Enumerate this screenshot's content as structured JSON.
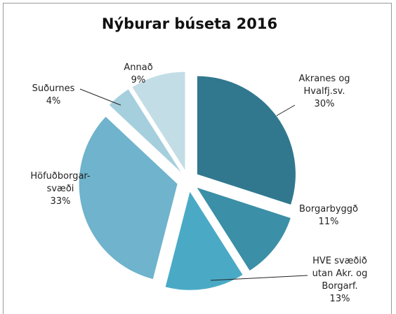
{
  "chart_data": {
    "type": "pie",
    "title": "Nýburar búseta 2016",
    "categories": [
      "Akranes og\nHvalfj.sv.",
      "Borgarbyggð",
      "HVE svæðið\nutan Akr. og\nBorgarf.",
      "Höfuðborgar-\nsvæði",
      "Suðurnes",
      "Annað"
    ],
    "values": [
      30,
      11,
      13,
      33,
      4,
      9
    ],
    "value_labels": [
      "30%",
      "11%",
      "13%",
      "33%",
      "4%",
      "9%"
    ],
    "colors": [
      "#31788f",
      "#3b8fa6",
      "#4aaac6",
      "#6fb3cc",
      "#a6cfdd",
      "#c3dde6"
    ]
  }
}
